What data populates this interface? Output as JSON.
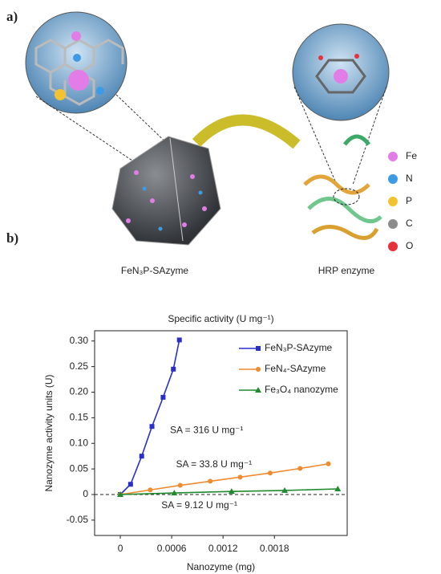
{
  "panel_a": {
    "label": "a)",
    "left_caption": "FeN₃P-SAzyme",
    "right_caption": "HRP enzyme",
    "legend": [
      {
        "name": "Fe",
        "color": "#e27de8"
      },
      {
        "name": "N",
        "color": "#3d9be6"
      },
      {
        "name": "P",
        "color": "#f2c230"
      },
      {
        "name": "C",
        "color": "#8c8c8c"
      },
      {
        "name": "O",
        "color": "#e5323c"
      }
    ]
  },
  "panel_b_label": "b)",
  "chart_data": {
    "type": "line",
    "title": "Specific activity (U mg⁻¹)",
    "x_label": "Nanozyme (mg)",
    "y_label": "Nanozyme activity units (U)",
    "xlim": [
      -0.0003,
      0.00265
    ],
    "ylim": [
      -0.08,
      0.32
    ],
    "xticks": [
      0,
      0.0006,
      0.0012,
      0.0018
    ],
    "yticks": [
      -0.05,
      0,
      0.05,
      {
        "value": 0.1,
        "label": "0.10"
      },
      0.15,
      {
        "value": 0.2,
        "label": "0.20"
      },
      0.25,
      {
        "value": 0.3,
        "label": "0.30"
      }
    ],
    "zero_line": true,
    "legend": "upper right",
    "series": [
      {
        "name": "FeN₃P-SAzyme",
        "color": "#2a2fc8",
        "marker": "square",
        "x": [
          0,
          0.00012,
          0.00025,
          0.00037,
          0.0005,
          0.00062,
          0.00069
        ],
        "values": [
          0,
          0.02,
          0.075,
          0.133,
          0.19,
          0.245,
          0.302
        ]
      },
      {
        "name": "FeN₄-SAzyme",
        "color": "#ef8a2e",
        "marker": "circle",
        "x": [
          0,
          0.00035,
          0.0007,
          0.00105,
          0.0014,
          0.00175,
          0.0021,
          0.00243
        ],
        "values": [
          0,
          0.009,
          0.018,
          0.026,
          0.034,
          0.042,
          0.051,
          0.06
        ]
      },
      {
        "name": "Fe₃O₄ nanozyme",
        "color": "#1f8a2e",
        "marker": "triangle",
        "x": [
          0,
          0.00063,
          0.0013,
          0.00192,
          0.00254
        ],
        "values": [
          0,
          0.003,
          0.006,
          0.008,
          0.011
        ]
      }
    ],
    "annotations": [
      {
        "text": "SA = 316 U mg⁻¹",
        "x": 0.00058,
        "y": 0.125
      },
      {
        "text": "SA = 33.8 U mg⁻¹",
        "x": 0.00065,
        "y": 0.058
      },
      {
        "text": "SA = 9.12 U mg⁻¹",
        "x": 0.00048,
        "y": -0.022
      }
    ]
  }
}
